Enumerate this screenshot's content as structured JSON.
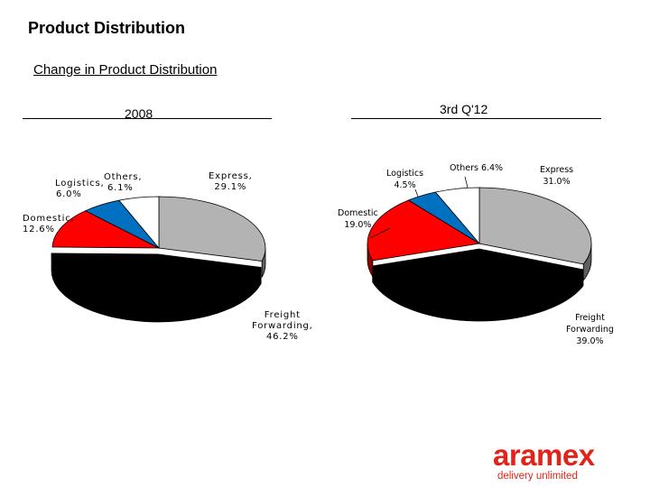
{
  "header": {
    "title": "Product Distribution",
    "subtitle": "Change in Product Distribution"
  },
  "chart_data": [
    {
      "type": "pie",
      "title": "2008",
      "slices": [
        {
          "label": "Express",
          "value": 29.1,
          "value_text": "29.1%",
          "color": "#b3b3b3"
        },
        {
          "label": "Freight Forwarding",
          "value": 46.2,
          "value_text": "46.2%",
          "color": "#000000"
        },
        {
          "label": "Domestic",
          "value": 12.6,
          "value_text": "12.6%",
          "color": "#ff0000"
        },
        {
          "label": "Logistics",
          "value": 6.0,
          "value_text": "6.0%",
          "color": "#0070c0"
        },
        {
          "label": "Others",
          "value": 6.1,
          "value_text": "6.1%",
          "color": "#ffffff"
        }
      ],
      "labels": {
        "express": {
          "line1": "Express,",
          "line2": "29.1%"
        },
        "freight": {
          "line1": "Freight",
          "line2": "Forwarding,",
          "line3": "46.2%"
        },
        "domestic": {
          "line1": "Domestic,",
          "line2": "12.6%"
        },
        "logistics": {
          "line1": "Logistics,",
          "line2": "6.0%"
        },
        "others": {
          "line1": "Others,",
          "line2": "6.1%"
        }
      }
    },
    {
      "type": "pie",
      "title": "3rd Q'12",
      "slices": [
        {
          "label": "Express",
          "value": 31.0,
          "value_text": "31.0%",
          "color": "#b3b3b3"
        },
        {
          "label": "Freight Forwarding",
          "value": 39.0,
          "value_text": "39.0%",
          "color": "#000000"
        },
        {
          "label": "Domestic",
          "value": 19.0,
          "value_text": "19.0%",
          "color": "#ff0000"
        },
        {
          "label": "Logistics",
          "value": 4.5,
          "value_text": "4.5%",
          "color": "#0070c0"
        },
        {
          "label": "Others",
          "value": 6.4,
          "value_text": "6.4%",
          "color": "#ffffff"
        }
      ],
      "labels": {
        "express": {
          "line1": "Express",
          "line2": "31.0%"
        },
        "freight": {
          "line1": "Freight",
          "line2": "Forwarding",
          "line3": "39.0%"
        },
        "domestic": {
          "line1": "Domestic",
          "line2": "19.0%"
        },
        "logistics": {
          "line1": "Logistics",
          "line2": "4.5%"
        },
        "others": {
          "line1": "Others 6.4%"
        }
      }
    }
  ],
  "logo": {
    "name": "aramex",
    "tagline": "delivery unlimited",
    "color": "#e2231a"
  }
}
